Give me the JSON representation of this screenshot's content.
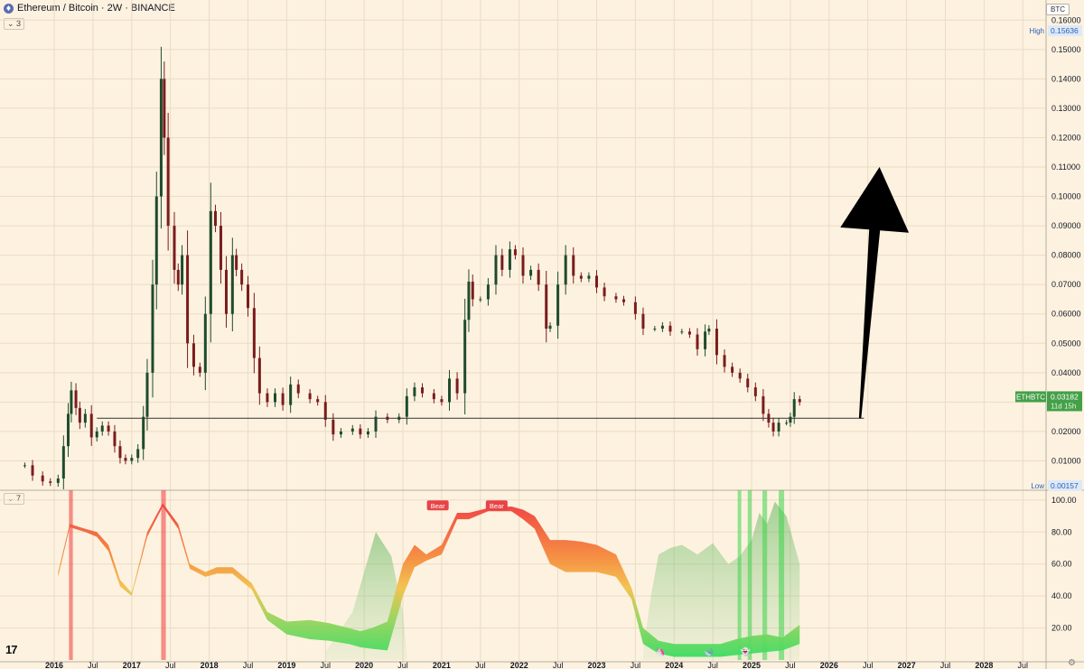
{
  "header": {
    "title": "Ethereum / Bitcoin · 2W · BINANCE",
    "symbol_icon": "ethereum-coin-icon",
    "main_pane_toggle": "3",
    "indicator_pane_toggle": "7"
  },
  "toolbar": {
    "currency_label": "BTC"
  },
  "branding": {
    "logo_text": "17",
    "settings_icon": "gear-icon"
  },
  "colors": {
    "background": "#fdf2e0",
    "candle_up": "#1f4b2c",
    "candle_down": "#7a1c1c",
    "price_tag": "#43a047",
    "support_line": "#333333",
    "arrow": "#000000",
    "bear_label": "#e84347",
    "signal_red": "#ef3b3b",
    "signal_green": "#3dd34a"
  },
  "chart_data": [
    {
      "type": "candlestick",
      "title": "Ethereum / Bitcoin · 2W · BINANCE",
      "y_unit": "BTC",
      "ylim": [
        0.0,
        0.165
      ],
      "y_ticks": [
        "0.16000",
        "0.15000",
        "0.14000",
        "0.13000",
        "0.12000",
        "0.11000",
        "0.10000",
        "0.09000",
        "0.08000",
        "0.07000",
        "0.06000",
        "0.05000",
        "0.04000",
        "0.03000",
        "0.02000",
        "0.01000"
      ],
      "x_ticks": [
        "2016",
        "Jul",
        "2017",
        "Jul",
        "2018",
        "Jul",
        "2019",
        "Jul",
        "2020",
        "Jul",
        "2021",
        "Jul",
        "2022",
        "Jul",
        "2023",
        "Jul",
        "2024",
        "Jul",
        "2025",
        "Jul",
        "2026",
        "Jul",
        "2027",
        "Jul",
        "2028",
        "Jul"
      ],
      "x_tick_times": [
        2016.0,
        2016.5,
        2017.0,
        2017.5,
        2018.0,
        2018.5,
        2019.0,
        2019.5,
        2020.0,
        2020.5,
        2021.0,
        2021.5,
        2022.0,
        2022.5,
        2023.0,
        2023.5,
        2024.0,
        2024.5,
        2025.0,
        2025.5,
        2026.0,
        2026.5,
        2027.0,
        2027.5,
        2028.0,
        2028.5
      ],
      "xlim": [
        2015.3,
        2028.8
      ],
      "price_line_points": [
        [
          2015.62,
          0.0085
        ],
        [
          2015.72,
          0.005
        ],
        [
          2015.85,
          0.003
        ],
        [
          2015.95,
          0.0025
        ],
        [
          2016.05,
          0.004
        ],
        [
          2016.12,
          0.015
        ],
        [
          2016.18,
          0.026
        ],
        [
          2016.22,
          0.034
        ],
        [
          2016.28,
          0.028
        ],
        [
          2016.33,
          0.023
        ],
        [
          2016.4,
          0.026
        ],
        [
          2016.48,
          0.018
        ],
        [
          2016.55,
          0.02
        ],
        [
          2016.62,
          0.022
        ],
        [
          2016.7,
          0.02
        ],
        [
          2016.78,
          0.015
        ],
        [
          2016.85,
          0.011
        ],
        [
          2016.92,
          0.01
        ],
        [
          2017.0,
          0.011
        ],
        [
          2017.08,
          0.014
        ],
        [
          2017.15,
          0.025
        ],
        [
          2017.2,
          0.04
        ],
        [
          2017.27,
          0.07
        ],
        [
          2017.32,
          0.1
        ],
        [
          2017.38,
          0.14
        ],
        [
          2017.42,
          0.12
        ],
        [
          2017.47,
          0.09
        ],
        [
          2017.55,
          0.075
        ],
        [
          2017.6,
          0.07
        ],
        [
          2017.65,
          0.08
        ],
        [
          2017.72,
          0.05
        ],
        [
          2017.8,
          0.042
        ],
        [
          2017.88,
          0.04
        ],
        [
          2017.95,
          0.06
        ],
        [
          2018.02,
          0.095
        ],
        [
          2018.08,
          0.09
        ],
        [
          2018.15,
          0.075
        ],
        [
          2018.22,
          0.06
        ],
        [
          2018.3,
          0.08
        ],
        [
          2018.35,
          0.075
        ],
        [
          2018.42,
          0.07
        ],
        [
          2018.5,
          0.062
        ],
        [
          2018.58,
          0.045
        ],
        [
          2018.65,
          0.033
        ],
        [
          2018.75,
          0.03
        ],
        [
          2018.85,
          0.033
        ],
        [
          2018.95,
          0.029
        ],
        [
          2019.05,
          0.036
        ],
        [
          2019.15,
          0.033
        ],
        [
          2019.3,
          0.031
        ],
        [
          2019.4,
          0.03
        ],
        [
          2019.5,
          0.024
        ],
        [
          2019.6,
          0.019
        ],
        [
          2019.7,
          0.02
        ],
        [
          2019.85,
          0.021
        ],
        [
          2019.95,
          0.019
        ],
        [
          2020.05,
          0.02
        ],
        [
          2020.15,
          0.025
        ],
        [
          2020.3,
          0.024
        ],
        [
          2020.45,
          0.025
        ],
        [
          2020.55,
          0.032
        ],
        [
          2020.65,
          0.035
        ],
        [
          2020.75,
          0.033
        ],
        [
          2020.9,
          0.031
        ],
        [
          2021.0,
          0.03
        ],
        [
          2021.1,
          0.038
        ],
        [
          2021.2,
          0.033
        ],
        [
          2021.3,
          0.058
        ],
        [
          2021.35,
          0.071
        ],
        [
          2021.4,
          0.065
        ],
        [
          2021.5,
          0.065
        ],
        [
          2021.6,
          0.07
        ],
        [
          2021.7,
          0.08
        ],
        [
          2021.78,
          0.075
        ],
        [
          2021.88,
          0.082
        ],
        [
          2021.95,
          0.08
        ],
        [
          2022.05,
          0.073
        ],
        [
          2022.15,
          0.075
        ],
        [
          2022.25,
          0.07
        ],
        [
          2022.35,
          0.055
        ],
        [
          2022.4,
          0.056
        ],
        [
          2022.5,
          0.07
        ],
        [
          2022.6,
          0.08
        ],
        [
          2022.7,
          0.073
        ],
        [
          2022.8,
          0.072
        ],
        [
          2022.9,
          0.073
        ],
        [
          2023.0,
          0.069
        ],
        [
          2023.1,
          0.066
        ],
        [
          2023.25,
          0.065
        ],
        [
          2023.35,
          0.064
        ],
        [
          2023.5,
          0.06
        ],
        [
          2023.6,
          0.055
        ],
        [
          2023.75,
          0.055
        ],
        [
          2023.85,
          0.056
        ],
        [
          2023.95,
          0.054
        ],
        [
          2024.1,
          0.054
        ],
        [
          2024.2,
          0.053
        ],
        [
          2024.3,
          0.048
        ],
        [
          2024.4,
          0.054
        ],
        [
          2024.45,
          0.055
        ],
        [
          2024.55,
          0.046
        ],
        [
          2024.65,
          0.042
        ],
        [
          2024.75,
          0.04
        ],
        [
          2024.85,
          0.038
        ],
        [
          2024.95,
          0.035
        ],
        [
          2025.05,
          0.032
        ],
        [
          2025.15,
          0.026
        ],
        [
          2025.22,
          0.023
        ],
        [
          2025.28,
          0.02
        ],
        [
          2025.35,
          0.023
        ],
        [
          2025.45,
          0.023
        ],
        [
          2025.5,
          0.025
        ],
        [
          2025.55,
          0.031
        ],
        [
          2025.62,
          0.03
        ]
      ],
      "labels": {
        "high_label": "High",
        "high_value": "0.15636",
        "low_label": "Low",
        "low_value": "0.00157",
        "symbol_tag": "ETHBTC",
        "last_price": "0.03182",
        "countdown": "11d 15h"
      },
      "support_level": 0.0245,
      "support_range": [
        2016.55,
        2026.45
      ],
      "arrow": {
        "from": [
          2026.4,
          0.0245
        ],
        "to": [
          2026.65,
          0.11
        ]
      }
    },
    {
      "type": "area",
      "title": "",
      "ylim": [
        0,
        105
      ],
      "y_ticks": [
        "100.00",
        "80.00",
        "60.00",
        "40.00",
        "20.00"
      ],
      "y_tick_values": [
        100,
        80,
        60,
        40,
        20
      ],
      "oscillator_x": [
        2016.05,
        2016.2,
        2016.4,
        2016.55,
        2016.7,
        2016.85,
        2017.0,
        2017.2,
        2017.4,
        2017.6,
        2017.75,
        2017.95,
        2018.1,
        2018.3,
        2018.55,
        2018.75,
        2019.0,
        2019.3,
        2019.55,
        2019.8,
        2019.95,
        2020.1,
        2020.3,
        2020.5,
        2020.65,
        2020.8,
        2021.0,
        2021.2,
        2021.35,
        2021.6,
        2021.9,
        2022.05,
        2022.2,
        2022.4,
        2022.6,
        2022.8,
        2023.0,
        2023.25,
        2023.45,
        2023.6,
        2023.8,
        2024.0,
        2024.3,
        2024.6,
        2024.8,
        2025.0,
        2025.2,
        2025.4,
        2025.62
      ],
      "oscillator_upper": [
        55,
        85,
        82,
        80,
        72,
        50,
        42,
        80,
        98,
        85,
        60,
        55,
        58,
        58,
        48,
        30,
        24,
        25,
        23,
        20,
        18,
        20,
        24,
        60,
        72,
        66,
        72,
        92,
        92,
        95,
        96,
        94,
        90,
        75,
        75,
        74,
        72,
        66,
        45,
        20,
        12,
        10,
        10,
        10,
        13,
        15,
        16,
        14,
        22
      ],
      "oscillator_lower": [
        52,
        83,
        80,
        77,
        68,
        46,
        40,
        77,
        96,
        82,
        57,
        52,
        54,
        54,
        44,
        25,
        16,
        13,
        12,
        10,
        8,
        7,
        6,
        40,
        58,
        62,
        66,
        88,
        88,
        93,
        93,
        88,
        82,
        60,
        55,
        55,
        55,
        52,
        38,
        10,
        4,
        2,
        2,
        2,
        3,
        4,
        5,
        6,
        10
      ],
      "cloud_x": [
        2019.5,
        2019.85,
        2020.0,
        2020.15,
        2020.35,
        2020.5,
        2020.55,
        2023.6,
        2023.7,
        2023.8,
        2023.95,
        2024.1,
        2024.3,
        2024.5,
        2024.7,
        2024.85,
        2025.0,
        2025.1,
        2025.2,
        2025.3,
        2025.45,
        2025.62
      ],
      "cloud_values": [
        5,
        30,
        55,
        80,
        65,
        30,
        3,
        5,
        40,
        66,
        70,
        72,
        66,
        73,
        60,
        65,
        75,
        92,
        85,
        99,
        90,
        60
      ],
      "bear_labels": [
        {
          "text": "Bear",
          "t": 2020.95,
          "v": 93
        },
        {
          "text": "Bear",
          "t": 2021.71,
          "v": 93
        }
      ],
      "red_bands": [
        [
          2016.19,
          2016.24
        ],
        [
          2017.38,
          2017.44
        ]
      ],
      "green_bands": [
        [
          2024.82,
          2024.86
        ],
        [
          2024.95,
          2025.0
        ],
        [
          2025.14,
          2025.2
        ],
        [
          2025.35,
          2025.42
        ]
      ],
      "pane_icons": [
        {
          "name": "unicorn-icon",
          "t": 2023.82
        },
        {
          "name": "whale-icon",
          "t": 2024.45
        },
        {
          "name": "ghost-icon",
          "t": 2024.92
        }
      ]
    }
  ]
}
